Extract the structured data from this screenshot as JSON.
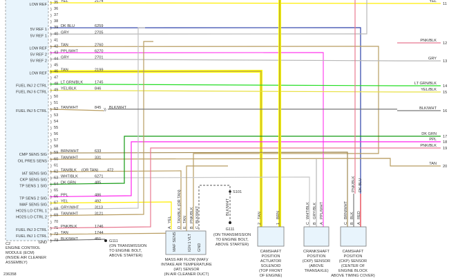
{
  "diagram_id": "236358",
  "wire_colors": {
    "YEL": "#ffee00",
    "DK BLU": "#2a3fa8",
    "GRY": "#b8b8b8",
    "TAN": "#b89c60",
    "PPL/WHT": "#ff44ee",
    "LT GRN/BLK": "#22dd22",
    "YEL/BLK": "#e8e040",
    "TAN/WHT": "#b89c60",
    "BLK/WHT": "#777777",
    "BRN/WHT": "#a08850",
    "TAN/BLK": "#b89c60",
    "WHT/BLK": "#c8c8c8",
    "DK GRN": "#119911",
    "PPL": "#ff22ee",
    "GRY/WHT": "#c0c0c0",
    "PNK/BLK": "#e87890",
    "RED": "#ff4444",
    "BLK": "#777777",
    "BRN": "#a08850",
    "highlight": "#ffff00"
  },
  "ecm": {
    "connector": "C2",
    "caption": [
      "ENGINE CONTROL",
      "MODULE (ECM)",
      "(INSIDE AIR CLEANER",
      "ASSEMBLY)"
    ],
    "pins": [
      {
        "num": "35",
        "func": "LOW REF",
        "color": "YEL",
        "circuit": "2174"
      },
      {
        "num": "36",
        "func": "",
        "color": "",
        "circuit": ""
      },
      {
        "num": "37",
        "func": "",
        "color": "",
        "circuit": ""
      },
      {
        "num": "38",
        "func": "",
        "color": "",
        "circuit": ""
      },
      {
        "num": "39",
        "func": "5V REF 1",
        "color": "DK BLU",
        "circuit": "6259"
      },
      {
        "num": "40",
        "func": "5V REF 1",
        "color": "GRY",
        "circuit": "2705"
      },
      {
        "num": "41",
        "func": "",
        "color": "",
        "circuit": ""
      },
      {
        "num": "42",
        "func": "LOW REF",
        "color": "TAN",
        "circuit": "2760"
      },
      {
        "num": "43",
        "func": "5V REF 2",
        "color": "PPL/WHT",
        "circuit": "6270"
      },
      {
        "num": "44",
        "func": "5V REF 2",
        "color": "GRY",
        "circuit": "2701"
      },
      {
        "num": "45",
        "func": "",
        "color": "",
        "circuit": ""
      },
      {
        "num": "46",
        "func": "LOW REF",
        "color": "TAN",
        "circuit": "2199"
      },
      {
        "num": "47",
        "func": "",
        "color": "",
        "circuit": ""
      },
      {
        "num": "48",
        "func": "FUEL INJ 2 CTRL",
        "color": "LT GRN/BLK",
        "circuit": "1745"
      },
      {
        "num": "49",
        "func": "FUEL INJ 6 CTRL",
        "color": "YEL/BLK",
        "circuit": "846"
      },
      {
        "num": "50",
        "func": "",
        "color": "",
        "circuit": ""
      },
      {
        "num": "51",
        "func": "",
        "color": "",
        "circuit": ""
      },
      {
        "num": "52",
        "func": "FUEL INJ 5 CTRL",
        "color": "TAN/WHT",
        "circuit": "845",
        "splice_color": "BLK/WHT"
      },
      {
        "num": "53",
        "func": "",
        "color": "",
        "circuit": ""
      },
      {
        "num": "54",
        "func": "",
        "color": "",
        "circuit": ""
      },
      {
        "num": "55",
        "func": "",
        "color": "",
        "circuit": ""
      },
      {
        "num": "56",
        "func": "",
        "color": "",
        "circuit": ""
      },
      {
        "num": "57",
        "func": "",
        "color": "",
        "circuit": ""
      },
      {
        "num": "58",
        "func": "",
        "color": "",
        "circuit": ""
      },
      {
        "num": "59",
        "func": "CMP SENS SIG",
        "color": "BRN/WHT",
        "circuit": "633"
      },
      {
        "num": "60",
        "func": "OIL PRES SENS",
        "color": "TAN/WHT",
        "circuit": "331"
      },
      {
        "num": "61",
        "func": "",
        "color": "",
        "circuit": ""
      },
      {
        "num": "62",
        "func": "IAT SENS SIG",
        "color": "TAN/BLK",
        "note": "(OR TAN)",
        "circuit": "472"
      },
      {
        "num": "63",
        "func": "CKP SENS SIG",
        "color": "WHT/BLK",
        "circuit": "6271"
      },
      {
        "num": "64",
        "func": "TP SENS 1 SIG",
        "color": "DK GRN",
        "circuit": "485"
      },
      {
        "num": "65",
        "func": "",
        "color": "",
        "circuit": ""
      },
      {
        "num": "66",
        "func": "TP SENS 2 SIG",
        "color": "PPL",
        "circuit": "486"
      },
      {
        "num": "67",
        "func": "MAF SENS SIG",
        "color": "YEL",
        "circuit": "492"
      },
      {
        "num": "68",
        "func": "HO2S LO CTRL 1",
        "color": "GRY/WHT",
        "circuit": "3113"
      },
      {
        "num": "69",
        "func": "HO2S LO CTRL 2",
        "color": "TAN/WHT",
        "circuit": "3121"
      },
      {
        "num": "70",
        "func": "",
        "color": "",
        "circuit": ""
      },
      {
        "num": "71",
        "func": "FUEL INJ 3 CTRL",
        "color": "PNK/BLK",
        "circuit": "1746"
      },
      {
        "num": "72",
        "func": "FUEL INJ 1 CTRL",
        "color": "TAN",
        "circuit": "1744"
      },
      {
        "num": "73",
        "func": "GND",
        "color": "BLK/WHT",
        "circuit": "451"
      }
    ]
  },
  "right_connectors": [
    {
      "num": "11",
      "color": "YEL"
    },
    {
      "num": "12",
      "color": "PNK/BLK"
    },
    {
      "num": "13",
      "color": "GRY"
    },
    {
      "num": "14",
      "color": "LT GRN/BLK"
    },
    {
      "num": "15",
      "color": "YEL/BLK"
    },
    {
      "num": "16",
      "color": "BLK/WHT"
    },
    {
      "num": "17",
      "color": "DK GRN"
    },
    {
      "num": "18",
      "color": "PPL"
    },
    {
      "num": "19",
      "color": "PNK/BLK"
    },
    {
      "num": "20",
      "color": "TAN"
    }
  ],
  "grounds": {
    "g111_ecm": {
      "id": "G111",
      "caption": [
        "(ON TRANSMISSION",
        "TO ENGINE BOLT,",
        "ABOVE STARTER)"
      ]
    },
    "s101": {
      "id": "S101"
    },
    "g111_maf": {
      "id": "G111",
      "wire": "BLK/WHT",
      "caption": [
        "(ON TRANSMISSION",
        "TO ENGINE BOLT,",
        "ABOVE STARTER)"
      ]
    }
  },
  "components": {
    "maf": {
      "pins": [
        {
          "letter": "A",
          "wire": "YEL"
        },
        {
          "letter": "D",
          "wire": "TAN/BLK",
          "note": "(OR TAN)"
        },
        {
          "letter": "E",
          "wire": "TAN"
        },
        {
          "letter": "B",
          "wire": "PNK/BLK"
        },
        {
          "letter": "C",
          "wire": "BLK/WHT"
        }
      ],
      "inner": [
        "MAF SENS",
        "IGN 1 VLT",
        "GND"
      ],
      "caption": [
        "MASS AIR FLOW (MAF)/",
        "INTAKE AIR TEMPERATURE",
        "(IAT) SENSOR",
        "(IN AIR CLEANER DUCT)"
      ]
    },
    "cam_actuator": {
      "pins": [
        {
          "letter": "2",
          "wire": "TAN"
        },
        {
          "letter": "1",
          "wire": "BRN"
        }
      ],
      "caption": [
        "CAMSHAFT",
        "POSITION",
        "ACTUATOR",
        "SOLENOID",
        "(TOP FRONT",
        "OF ENGINE)"
      ]
    },
    "ckp": {
      "pins": [
        {
          "letter": "C",
          "wire": "WHT/BLK"
        },
        {
          "letter": "B",
          "wire": "GRY/BLK"
        },
        {
          "letter": "A",
          "wire": "PPL/WHT"
        }
      ],
      "caption": [
        "CRANKSHAFT",
        "POSITION",
        "(CKP) SENSOR",
        "(ABOVE",
        "TRANSAXLE)"
      ]
    },
    "cmp": {
      "pins": [
        {
          "letter": "C",
          "wire": "BRN/WHT"
        },
        {
          "letter": "B",
          "wire": "BLK"
        },
        {
          "letter": "A",
          "wire": "RED"
        }
      ],
      "upper_wires": [
        "PNK/BLK",
        "DK BLU"
      ],
      "caption": [
        "CAMSHAFT",
        "POSITION",
        "(CKP) SENSOR",
        "(CENTER OF",
        "ENGINE BLOCK",
        "ABOVE TIMING COVER)"
      ]
    }
  }
}
